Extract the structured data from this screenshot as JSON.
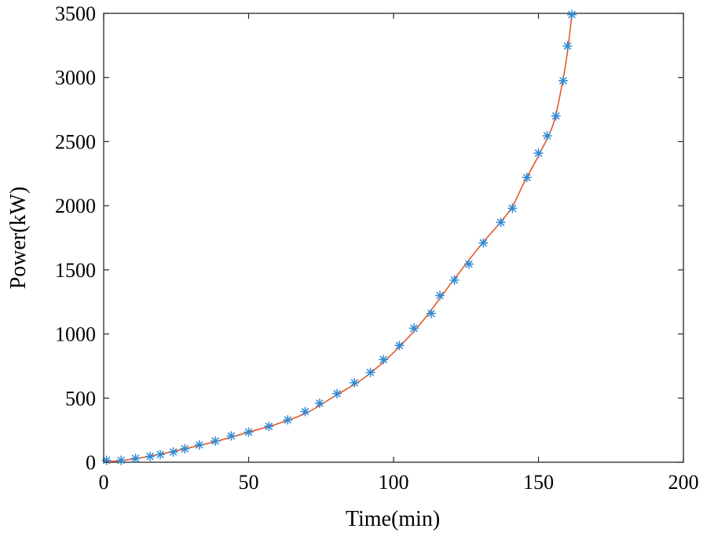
{
  "chart_data": {
    "type": "line",
    "title": "",
    "xlabel": "Time(min)",
    "ylabel": "Power(kW)",
    "xlim": [
      0,
      200
    ],
    "ylim": [
      0,
      3500
    ],
    "xticks": [
      0,
      50,
      100,
      150,
      200
    ],
    "yticks": [
      0,
      500,
      1000,
      1500,
      2000,
      2500,
      3000,
      3500
    ],
    "grid": false,
    "legend": "none",
    "series": [
      {
        "marker": "asterisk",
        "color": "#2e8bd6",
        "x": [
          1,
          6,
          11,
          16,
          19.5,
          24,
          28,
          33,
          38.5,
          44,
          50,
          57,
          63.5,
          69.5,
          74.5,
          80.5,
          86.5,
          92,
          96.5,
          102,
          107,
          113,
          116,
          121,
          126,
          131,
          137,
          141,
          146,
          150,
          153,
          156,
          158.5,
          160,
          161.5
        ],
        "y": [
          15,
          15,
          30,
          45,
          60,
          80,
          105,
          135,
          165,
          205,
          235,
          280,
          330,
          395,
          460,
          535,
          620,
          700,
          800,
          910,
          1045,
          1160,
          1300,
          1420,
          1545,
          1710,
          1870,
          1980,
          2220,
          2410,
          2545,
          2700,
          2975,
          3245,
          3490
        ]
      },
      {
        "line": "solid",
        "color": "#e2592a",
        "x": [
          0,
          10,
          20,
          30,
          40,
          50,
          60,
          70,
          80,
          90,
          100,
          110,
          120,
          130,
          140,
          145,
          150,
          155,
          158,
          160,
          161.5
        ],
        "y": [
          0,
          25,
          65,
          115,
          170,
          235,
          300,
          385,
          520,
          660,
          855,
          1100,
          1400,
          1690,
          1960,
          2180,
          2390,
          2630,
          2930,
          3200,
          3490
        ]
      }
    ]
  }
}
